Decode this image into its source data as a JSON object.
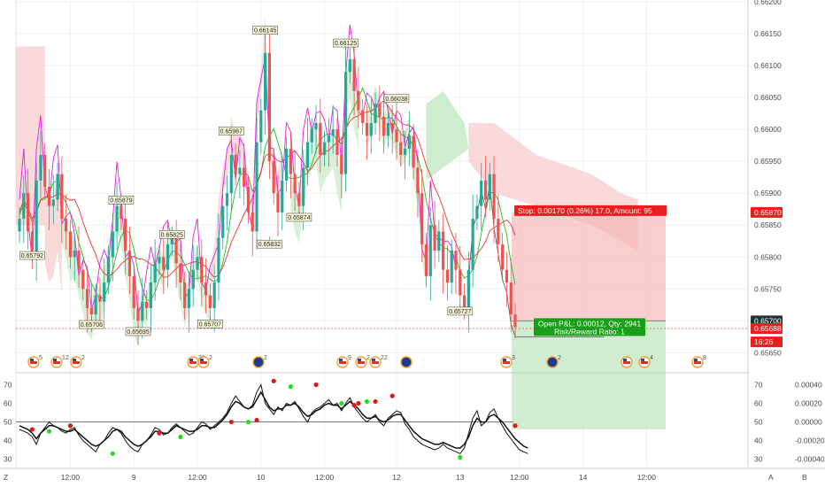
{
  "chart_data": {
    "type": "candlestick",
    "main_pane": {
      "y_axis_ticks": [
        "0.66200",
        "0.66150",
        "0.66100",
        "0.66050",
        "0.66000",
        "0.65950",
        "0.65900",
        "0.65850",
        "0.65800",
        "0.65750",
        "0.65700",
        "0.65650"
      ],
      "ylim": [
        0.6562,
        0.662
      ],
      "price_labels": [
        {
          "text": "0.65870",
          "color": "#e91e1e",
          "value": 0.6587
        },
        {
          "text": "0.65700",
          "color": "#2a2e39",
          "value": 0.657
        },
        {
          "text": "0.65688",
          "color": "#e91e1e",
          "value": 0.65688
        },
        {
          "text": "16:26",
          "color": "#e91e1e",
          "value": 0.65667
        }
      ],
      "swing_labels": [
        {
          "text": "0.66145",
          "bar": 58,
          "value": 0.66145,
          "pos": "top"
        },
        {
          "text": "0.66125",
          "bar": 77,
          "value": 0.66125,
          "pos": "top"
        },
        {
          "text": "0.66038",
          "bar": 89,
          "value": 0.66038,
          "pos": "top"
        },
        {
          "text": "0.65987",
          "bar": 50,
          "value": 0.65987,
          "pos": "top"
        },
        {
          "text": "0.65879",
          "bar": 24,
          "value": 0.65879,
          "pos": "top"
        },
        {
          "text": "0.65825",
          "bar": 36,
          "value": 0.65825,
          "pos": "top"
        },
        {
          "text": "0.65792",
          "bar": 3,
          "value": 0.65792,
          "pos": "top"
        },
        {
          "text": "0.65874",
          "bar": 66,
          "value": 0.65874,
          "pos": "bottom"
        },
        {
          "text": "0.65832",
          "bar": 59,
          "value": 0.65832,
          "pos": "bottom"
        },
        {
          "text": "0.65727",
          "bar": 104,
          "value": 0.65727,
          "pos": "bottom"
        },
        {
          "text": "0.65707",
          "bar": 45,
          "value": 0.65707,
          "pos": "bottom"
        },
        {
          "text": "0.65706",
          "bar": 17,
          "value": 0.65706,
          "pos": "bottom"
        },
        {
          "text": "0.65695",
          "bar": 28,
          "value": 0.65695,
          "pos": "bottom"
        }
      ],
      "trade": {
        "stop_label": "Stop: 0.00170 (0.26%) 17.0, Amount: 95",
        "pnl_label_1": "Open P&L: 0.00012, Qty: 2941",
        "pnl_label_2": "Risk/Reward Ratio: 1",
        "entry": 0.657,
        "stop": 0.6587,
        "target": 0.6553,
        "current": 0.65688
      },
      "event_markers": [
        {
          "label": "5",
          "type": "us"
        },
        {
          "label": "12",
          "type": "us"
        },
        {
          "label": "2",
          "type": "us"
        },
        {
          "label": "31",
          "type": "us"
        },
        {
          "label": "2",
          "type": "us"
        },
        {
          "label": "2",
          "type": "nz"
        },
        {
          "label": "9",
          "type": "us"
        },
        {
          "label": "2",
          "type": "us"
        },
        {
          "label": "22",
          "type": "us"
        },
        {
          "label": "",
          "type": "nz"
        },
        {
          "label": "3",
          "type": "us"
        },
        {
          "label": "2",
          "type": "nz"
        },
        {
          "label": "",
          "type": "us"
        },
        {
          "label": "4",
          "type": "us"
        },
        {
          "label": "8",
          "type": "us"
        }
      ],
      "candles_close": [
        0.6586,
        0.659,
        0.6584,
        0.658,
        0.6592,
        0.6596,
        0.6591,
        0.6588,
        0.6589,
        0.6593,
        0.6586,
        0.6584,
        0.658,
        0.6581,
        0.6578,
        0.6575,
        0.6572,
        0.6571,
        0.6574,
        0.6573,
        0.6576,
        0.658,
        0.6584,
        0.6588,
        0.6586,
        0.6581,
        0.6577,
        0.6572,
        0.657,
        0.6573,
        0.6572,
        0.6576,
        0.6579,
        0.658,
        0.6578,
        0.6582,
        0.6583,
        0.6579,
        0.6576,
        0.6572,
        0.6575,
        0.6578,
        0.658,
        0.6576,
        0.6574,
        0.6572,
        0.6576,
        0.6583,
        0.6588,
        0.659,
        0.6596,
        0.6593,
        0.6594,
        0.6591,
        0.6587,
        0.6584,
        0.6598,
        0.6603,
        0.6612,
        0.6595,
        0.659,
        0.6587,
        0.6592,
        0.6597,
        0.6593,
        0.659,
        0.6588,
        0.6594,
        0.6598,
        0.66,
        0.6601,
        0.6596,
        0.6598,
        0.6599,
        0.66,
        0.6596,
        0.6593,
        0.6609,
        0.6611,
        0.6606,
        0.6603,
        0.6601,
        0.6599,
        0.6601,
        0.6604,
        0.6602,
        0.6599,
        0.6601,
        0.66,
        0.6598,
        0.6596,
        0.6597,
        0.6599,
        0.6594,
        0.659,
        0.6582,
        0.6577,
        0.6585,
        0.6581,
        0.6584,
        0.6578,
        0.6576,
        0.6581,
        0.6578,
        0.6574,
        0.6572,
        0.6578,
        0.6586,
        0.6588,
        0.6592,
        0.6589,
        0.6593,
        0.6586,
        0.6582,
        0.6578,
        0.6576,
        0.6571,
        0.6569
      ],
      "series": [
        {
          "name": "",
          "color": "#e020e0"
        },
        {
          "name": "",
          "color": "#22bb22"
        },
        {
          "name": "",
          "color": "#ee3333"
        }
      ]
    },
    "osc_pane": {
      "y_axis_left": [
        "70",
        "60",
        "50",
        "40",
        "30"
      ],
      "y_axis_right": [
        "70",
        "60",
        "50",
        "40",
        "30"
      ],
      "y_axis_right2": [
        "0.00040",
        "0.00020",
        "0.00000",
        "-0.00020",
        "-0.00040"
      ],
      "ylim": [
        26,
        75
      ],
      "midline": 50,
      "line1": [
        46,
        45,
        44,
        42,
        38,
        44,
        47,
        50,
        48,
        47,
        45,
        44,
        46,
        47,
        43,
        40,
        38,
        36,
        34,
        38,
        40,
        44,
        47,
        46,
        44,
        40,
        37,
        35,
        34,
        38,
        40,
        43,
        47,
        46,
        43,
        44,
        47,
        49,
        47,
        45,
        43,
        44,
        47,
        50,
        49,
        46,
        48,
        50,
        52,
        55,
        60,
        64,
        61,
        58,
        57,
        59,
        66,
        70,
        60,
        57,
        54,
        58,
        56,
        60,
        59,
        61,
        57,
        53,
        50,
        55,
        57,
        58,
        60,
        62,
        59,
        60,
        56,
        60,
        63,
        58,
        55,
        52,
        50,
        52,
        54,
        50,
        48,
        52,
        54,
        56,
        55,
        49,
        46,
        42,
        40,
        38,
        37,
        36,
        35,
        36,
        38,
        36,
        35,
        34,
        33,
        36,
        44,
        52,
        56,
        48,
        50,
        55,
        57,
        52,
        48,
        44,
        41,
        38,
        35,
        34,
        33
      ],
      "line2": [
        48,
        47,
        46,
        44,
        41,
        44,
        46,
        48,
        48,
        47,
        46,
        45,
        45,
        46,
        44,
        42,
        40,
        38,
        37,
        38,
        40,
        42,
        45,
        46,
        45,
        42,
        40,
        38,
        37,
        38,
        40,
        42,
        45,
        45,
        44,
        44,
        46,
        48,
        47,
        46,
        45,
        45,
        46,
        48,
        48,
        47,
        47,
        49,
        51,
        54,
        58,
        61,
        60,
        58,
        57,
        58,
        62,
        66,
        62,
        58,
        56,
        57,
        57,
        59,
        59,
        60,
        58,
        55,
        53,
        54,
        56,
        57,
        59,
        60,
        59,
        59,
        57,
        59,
        61,
        59,
        57,
        54,
        52,
        52,
        53,
        51,
        50,
        51,
        53,
        54,
        54,
        51,
        48,
        45,
        43,
        41,
        40,
        39,
        38,
        38,
        39,
        38,
        37,
        36,
        36,
        38,
        42,
        48,
        52,
        50,
        50,
        53,
        54,
        52,
        50,
        47,
        44,
        41,
        39,
        37,
        36
      ],
      "dots": [
        {
          "i": 3,
          "v": 46,
          "c": "r"
        },
        {
          "i": 7,
          "v": 45,
          "c": "g"
        },
        {
          "i": 12,
          "v": 48,
          "c": "r"
        },
        {
          "i": 22,
          "v": 33,
          "c": "g"
        },
        {
          "i": 33,
          "v": 44,
          "c": "r"
        },
        {
          "i": 38,
          "v": 42,
          "c": "g"
        },
        {
          "i": 50,
          "v": 50,
          "c": "r"
        },
        {
          "i": 54,
          "v": 50,
          "c": "g"
        },
        {
          "i": 56,
          "v": 51,
          "c": "r"
        },
        {
          "i": 60,
          "v": 72,
          "c": "r"
        },
        {
          "i": 64,
          "v": 69,
          "c": "g"
        },
        {
          "i": 70,
          "v": 70,
          "c": "r"
        },
        {
          "i": 76,
          "v": 60,
          "c": "g"
        },
        {
          "i": 79,
          "v": 59,
          "c": "r"
        },
        {
          "i": 80,
          "v": 60,
          "c": "r"
        },
        {
          "i": 82,
          "v": 61,
          "c": "g"
        },
        {
          "i": 84,
          "v": 61,
          "c": "r"
        },
        {
          "i": 88,
          "v": 64,
          "c": "r"
        },
        {
          "i": 104,
          "v": 31,
          "c": "g"
        },
        {
          "i": 117,
          "v": 48,
          "c": "r"
        }
      ]
    },
    "x_axis_ticks": [
      {
        "text": "12:00",
        "bar": 12
      },
      {
        "text": "9",
        "bar": 27
      },
      {
        "text": "12:00",
        "bar": 42
      },
      {
        "text": "10",
        "bar": 57
      },
      {
        "text": "12:00",
        "bar": 72
      },
      {
        "text": "12",
        "bar": 89
      },
      {
        "text": "13",
        "bar": 104
      },
      {
        "text": "12:00",
        "bar": 118
      },
      {
        "text": "14",
        "bar": 133
      },
      {
        "text": "12:00",
        "bar": 148
      }
    ],
    "x_axis_suffix": [
      "A",
      "B"
    ],
    "x_axis_prefix": "Z",
    "grid": true
  },
  "colors": {
    "up": "#26a69a",
    "down": "#ef5350",
    "stop_fill": "#f6b3b3",
    "target_fill": "#b7e4b9",
    "cloud_red": "#f7cccc",
    "cloud_green": "#c9ebc9"
  }
}
